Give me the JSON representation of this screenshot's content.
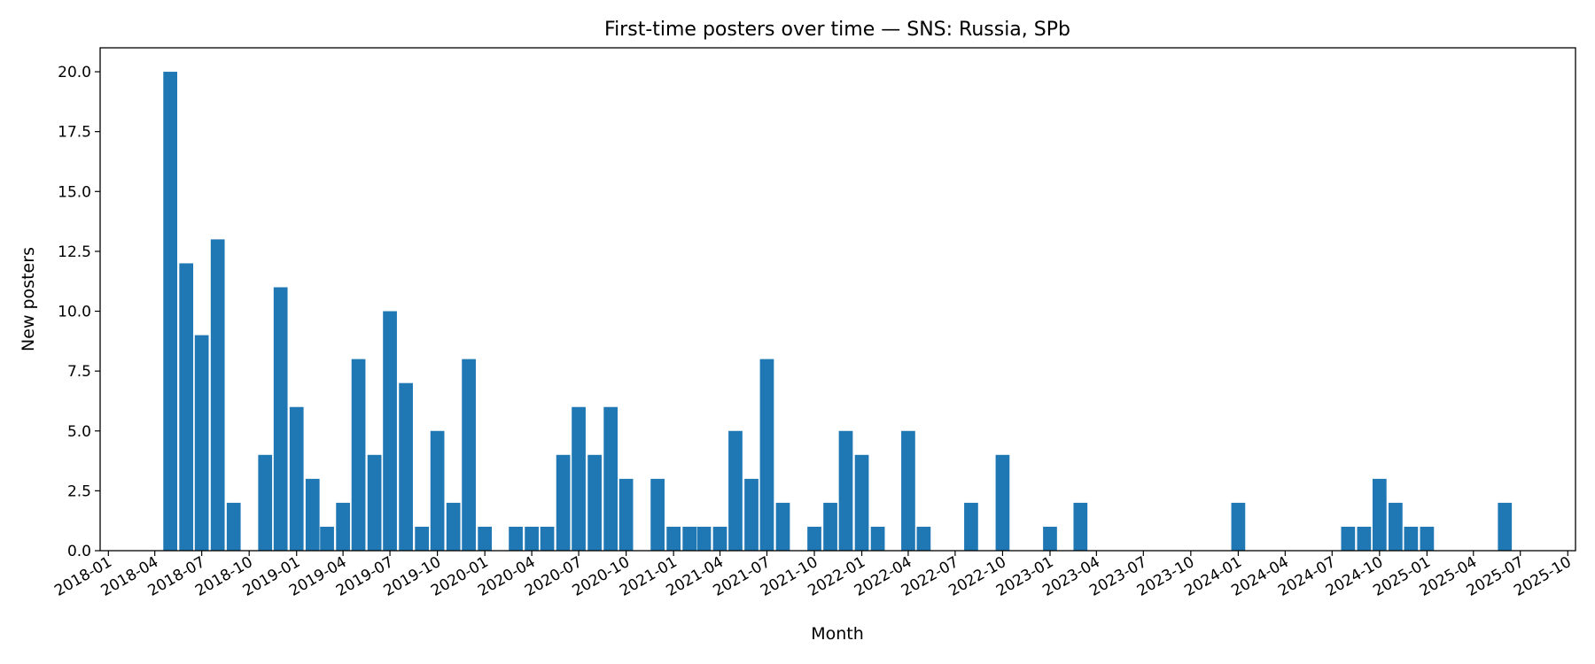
{
  "chart_data": {
    "type": "bar",
    "title": "First-time posters over time — SNS: Russia, SPb",
    "xlabel": "Month",
    "ylabel": "New posters",
    "ylim": [
      0,
      21
    ],
    "xlim": [
      "2017-12-16",
      "2025-10-16"
    ],
    "yticks": [
      "0.0",
      "2.5",
      "5.0",
      "7.5",
      "10.0",
      "12.5",
      "15.0",
      "17.5",
      "20.0"
    ],
    "xticks": [
      "2018-01",
      "2018-04",
      "2018-07",
      "2018-10",
      "2019-01",
      "2019-04",
      "2019-07",
      "2019-10",
      "2020-01",
      "2020-04",
      "2020-07",
      "2020-10",
      "2021-01",
      "2021-04",
      "2021-07",
      "2021-10",
      "2022-01",
      "2022-04",
      "2022-07",
      "2022-10",
      "2023-01",
      "2023-04",
      "2023-07",
      "2023-10",
      "2024-01",
      "2024-04",
      "2024-07",
      "2024-10",
      "2025-01",
      "2025-04",
      "2025-07",
      "2025-10"
    ],
    "bar_color": "#1f77b4",
    "grid": false,
    "series": [
      {
        "x": [
          "2018-05",
          "2018-06",
          "2018-07",
          "2018-08",
          "2018-09",
          "2018-11",
          "2018-12",
          "2019-01",
          "2019-02",
          "2019-03",
          "2019-04",
          "2019-05",
          "2019-06",
          "2019-07",
          "2019-08",
          "2019-09",
          "2019-10",
          "2019-11",
          "2019-12",
          "2020-01",
          "2020-03",
          "2020-04",
          "2020-05",
          "2020-06",
          "2020-07",
          "2020-08",
          "2020-09",
          "2020-10",
          "2020-12",
          "2021-01",
          "2021-02",
          "2021-03",
          "2021-04",
          "2021-05",
          "2021-06",
          "2021-07",
          "2021-08",
          "2021-10",
          "2021-11",
          "2021-12",
          "2022-01",
          "2022-02",
          "2022-04",
          "2022-05",
          "2022-08",
          "2022-10",
          "2023-01",
          "2023-03",
          "2024-01",
          "2024-08",
          "2024-09",
          "2024-10",
          "2024-11",
          "2024-12",
          "2025-01",
          "2025-06"
        ],
        "values": [
          20,
          12,
          9,
          13,
          2,
          4,
          11,
          6,
          3,
          1,
          2,
          8,
          4,
          10,
          7,
          1,
          5,
          2,
          8,
          1,
          1,
          1,
          1,
          4,
          6,
          4,
          6,
          3,
          3,
          1,
          1,
          1,
          1,
          5,
          3,
          8,
          2,
          1,
          2,
          5,
          4,
          1,
          5,
          1,
          2,
          4,
          1,
          2,
          2,
          1,
          1,
          3,
          2,
          1,
          1,
          2
        ]
      }
    ]
  }
}
